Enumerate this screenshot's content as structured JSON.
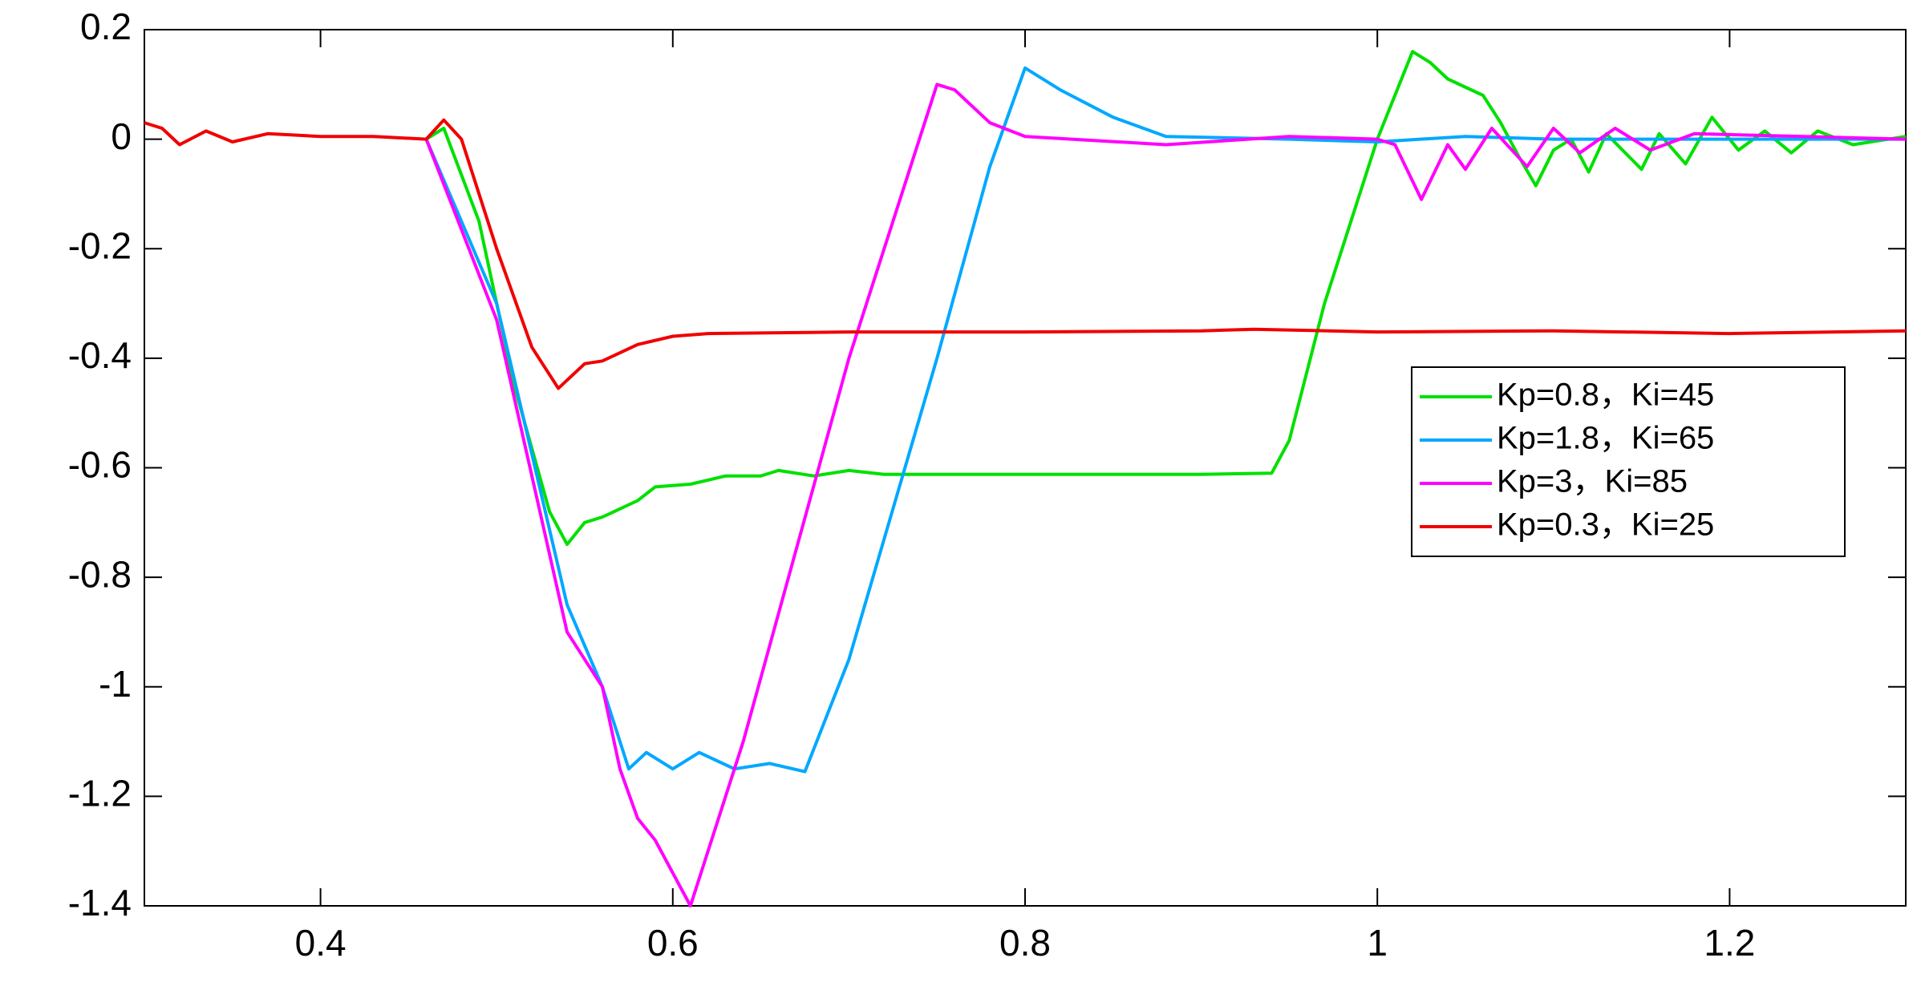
{
  "chart_data": {
    "type": "line",
    "xlim": [
      0.3,
      1.3
    ],
    "ylim": [
      -1.4,
      0.2
    ],
    "xticks": [
      0.4,
      0.6,
      0.8,
      {
        "value": 1,
        "label": "1"
      },
      1.2
    ],
    "yticks": [
      0.2,
      0,
      -0.2,
      -0.4,
      -0.6,
      -0.8,
      -1,
      -1.2,
      -1.4
    ],
    "legend": "right",
    "series": [
      {
        "name": "Kp=0.8，Ki=45",
        "color": "#00e000",
        "x": [
          0.46,
          0.47,
          0.49,
          0.51,
          0.53,
          0.54,
          0.55,
          0.56,
          0.58,
          0.59,
          0.61,
          0.63,
          0.65,
          0.66,
          0.68,
          0.7,
          0.72,
          0.8,
          0.9,
          0.94,
          0.95,
          0.97,
          1.0,
          1.02,
          1.03,
          1.04,
          1.06,
          1.07,
          1.08,
          1.09,
          1.1,
          1.11,
          1.12,
          1.13,
          1.15,
          1.16,
          1.175,
          1.19,
          1.205,
          1.22,
          1.235,
          1.25,
          1.27,
          1.3
        ],
        "values": [
          0,
          0.02,
          -0.15,
          -0.45,
          -0.68,
          -0.74,
          -0.7,
          -0.69,
          -0.66,
          -0.635,
          -0.63,
          -0.615,
          -0.615,
          -0.605,
          -0.615,
          -0.605,
          -0.612,
          -0.612,
          -0.612,
          -0.61,
          -0.55,
          -0.3,
          0,
          0.16,
          0.14,
          0.11,
          0.08,
          0.03,
          -0.03,
          -0.085,
          -0.02,
          0,
          -0.06,
          0.01,
          -0.055,
          0.01,
          -0.045,
          0.04,
          -0.02,
          0.015,
          -0.025,
          0.015,
          -0.01,
          0.005
        ]
      },
      {
        "name": "Kp=1.8，Ki=65",
        "color": "#00a8ff",
        "x": [
          0.46,
          0.5,
          0.54,
          0.56,
          0.575,
          0.585,
          0.6,
          0.615,
          0.635,
          0.655,
          0.675,
          0.7,
          0.75,
          0.78,
          0.8,
          0.82,
          0.85,
          0.88,
          0.95,
          1.0,
          1.05,
          1.1,
          1.3
        ],
        "values": [
          0,
          -0.3,
          -0.85,
          -1.0,
          -1.15,
          -1.12,
          -1.15,
          -1.12,
          -1.15,
          -1.14,
          -1.155,
          -0.95,
          -0.4,
          -0.05,
          0.13,
          0.09,
          0.04,
          0.005,
          0,
          -0.005,
          0.005,
          0,
          0
        ]
      },
      {
        "name": "Kp=3，Ki=85",
        "color": "#ff00ff",
        "x": [
          0.46,
          0.5,
          0.54,
          0.56,
          0.57,
          0.58,
          0.59,
          0.61,
          0.64,
          0.7,
          0.75,
          0.76,
          0.78,
          0.8,
          0.88,
          0.95,
          1.0,
          1.01,
          1.025,
          1.04,
          1.05,
          1.065,
          1.085,
          1.1,
          1.115,
          1.135,
          1.155,
          1.18,
          1.3
        ],
        "values": [
          0,
          -0.33,
          -0.9,
          -1.0,
          -1.15,
          -1.24,
          -1.28,
          -1.4,
          -1.1,
          -0.4,
          0.1,
          0.09,
          0.03,
          0.005,
          -0.01,
          0.005,
          0,
          -0.01,
          -0.11,
          -0.01,
          -0.055,
          0.02,
          -0.05,
          0.02,
          -0.025,
          0.02,
          -0.02,
          0.01,
          0
        ]
      },
      {
        "name": "Kp=0.3，Ki=25",
        "color": "#f00000",
        "x": [
          0.3,
          0.31,
          0.32,
          0.335,
          0.35,
          0.37,
          0.4,
          0.43,
          0.46,
          0.47,
          0.48,
          0.5,
          0.52,
          0.535,
          0.55,
          0.56,
          0.58,
          0.6,
          0.62,
          0.7,
          0.8,
          0.9,
          0.93,
          1.0,
          1.1,
          1.2,
          1.3
        ],
        "values": [
          0.03,
          0.02,
          -0.01,
          0.015,
          -0.005,
          0.01,
          0.005,
          0.005,
          0,
          0.035,
          0,
          -0.2,
          -0.38,
          -0.455,
          -0.41,
          -0.405,
          -0.375,
          -0.36,
          -0.355,
          -0.352,
          -0.352,
          -0.35,
          -0.347,
          -0.352,
          -0.35,
          -0.355,
          -0.35
        ]
      }
    ]
  }
}
